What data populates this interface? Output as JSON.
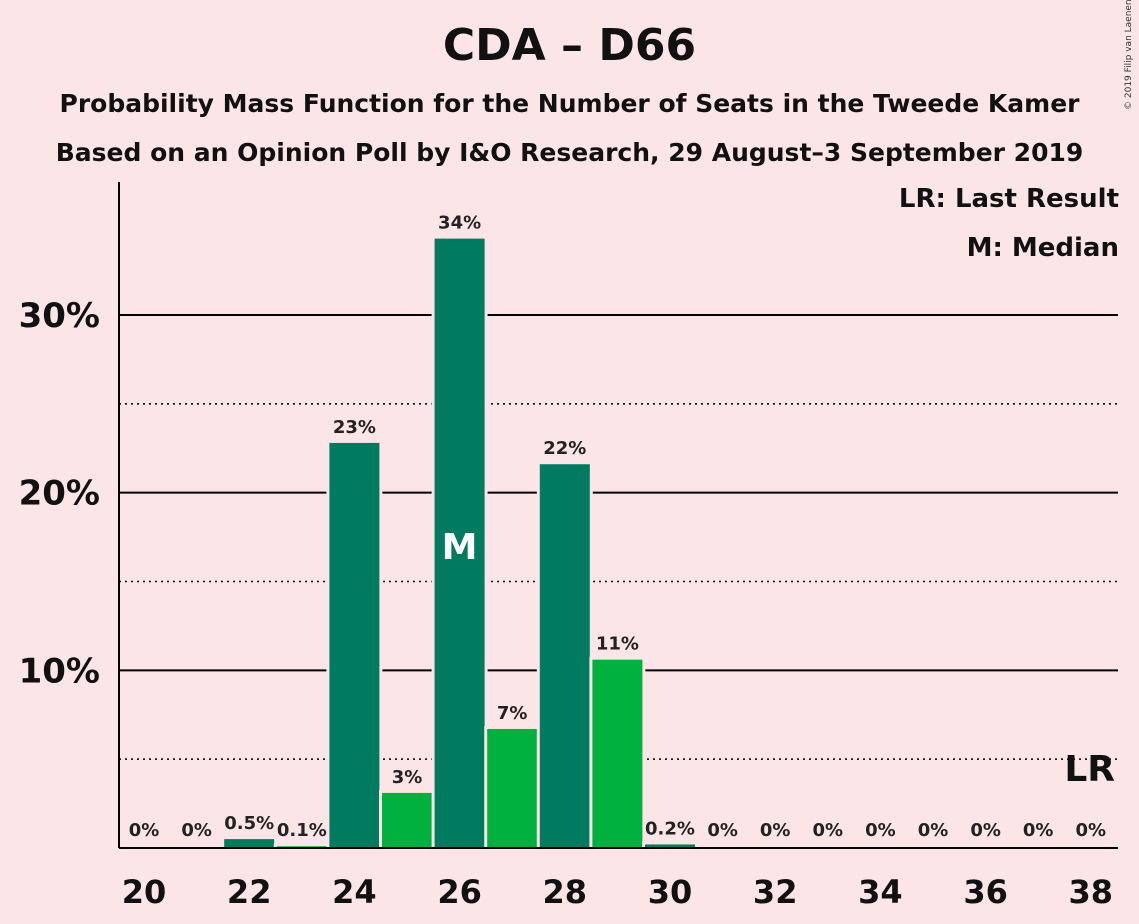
{
  "header": {
    "title": "CDA – D66",
    "subtitle1": "Probability Mass Function for the Number of Seats in the Tweede Kamer",
    "subtitle2": "Based on an Opinion Poll by I&O Research, 29 August–3 September 2019",
    "copyright": "© 2019 Filip van Laenen"
  },
  "legend": {
    "last_result": "LR: Last Result",
    "median": "M: Median"
  },
  "chart_data": {
    "type": "bar",
    "x": [
      20,
      21,
      22,
      23,
      24,
      25,
      26,
      27,
      28,
      29,
      30,
      31,
      32,
      33,
      34,
      35,
      36,
      37,
      38
    ],
    "values": [
      0,
      0,
      0.5,
      0.1,
      22.8,
      3.1,
      34.3,
      6.7,
      21.6,
      10.6,
      0.2,
      0,
      0,
      0,
      0,
      0,
      0,
      0,
      0
    ],
    "labels": [
      "0%",
      "0%",
      "0.5%",
      "0.1%",
      "23%",
      "3%",
      "34%",
      "7%",
      "22%",
      "11%",
      "0.2%",
      "0%",
      "0%",
      "0%",
      "0%",
      "0%",
      "0%",
      "0%",
      "0%"
    ],
    "x_tick_labels": [
      "20",
      "22",
      "24",
      "26",
      "28",
      "30",
      "32",
      "34",
      "36",
      "38"
    ],
    "y_tick_labels": [
      "10%",
      "20%",
      "30%"
    ],
    "y_ticks": [
      10,
      20,
      30
    ],
    "y_minor_ticks": [
      5,
      15,
      25
    ],
    "ylim": [
      0,
      37.5
    ],
    "median_seat": 26,
    "median_label": "M",
    "last_result_seat": 38,
    "last_result_label": "LR",
    "colors": {
      "party_dark": "#007B5F",
      "party_light": "#00B140",
      "background": "#FCE5E6"
    },
    "grid": true
  }
}
